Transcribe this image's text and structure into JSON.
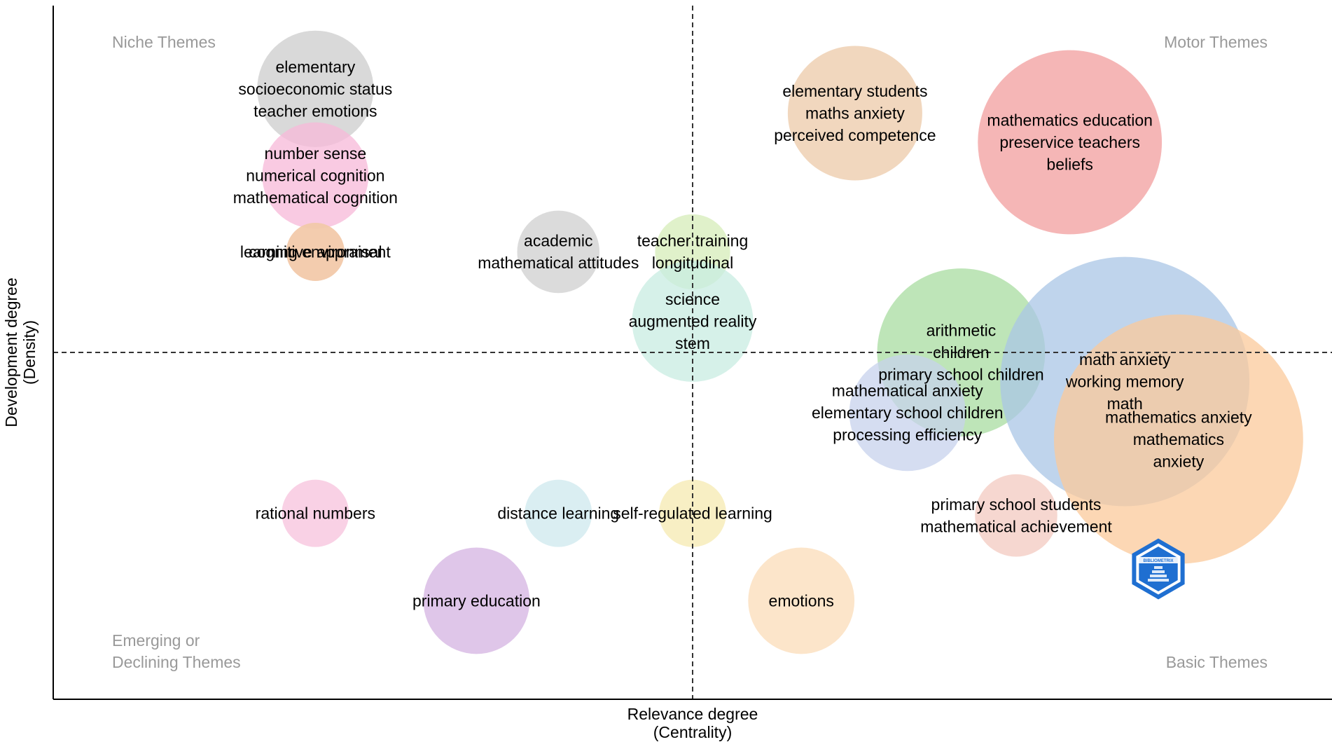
{
  "chart_data": {
    "type": "scatter",
    "title": "",
    "xlabel": [
      "Relevance degree",
      "(Centrality)"
    ],
    "ylabel": [
      "Development degree",
      "(Density)"
    ],
    "quadrant_labels": {
      "top_left": [
        "Niche Themes"
      ],
      "top_right": [
        "Motor Themes"
      ],
      "bottom_left": [
        "Emerging or",
        "Declining Themes"
      ],
      "bottom_right": [
        "Basic Themes"
      ]
    },
    "axis_ticks": "none",
    "grid": false,
    "reference_lines": {
      "x": 0.5,
      "y": 0.5,
      "style": "dashed"
    },
    "xlim": [
      0,
      1
    ],
    "ylim": [
      0,
      1
    ],
    "clusters": [
      {
        "x": 0.205,
        "y": 0.88,
        "size": 0.012,
        "color": "#cccccc",
        "labels": [
          "elementary",
          "socioeconomic status",
          "teacher emotions"
        ]
      },
      {
        "x": 0.205,
        "y": 0.755,
        "size": 0.01,
        "color": "#f7b8d8",
        "labels": [
          "number sense",
          "numerical cognition",
          "mathematical cognition"
        ]
      },
      {
        "x": 0.205,
        "y": 0.645,
        "size": 0.003,
        "color": "#f2c8a8",
        "labels": [
          "learning environment"
        ]
      },
      {
        "x": 0.205,
        "y": 0.645,
        "size": 0.003,
        "color": "#f2c8a8",
        "labels": [
          "cognitive appraisal"
        ]
      },
      {
        "x": 0.395,
        "y": 0.645,
        "size": 0.006,
        "color": "#cfcfcf",
        "labels": [
          "academic",
          "mathematical attitudes"
        ]
      },
      {
        "x": 0.5,
        "y": 0.645,
        "size": 0.005,
        "color": "#d6ecb8",
        "labels": [
          "teacher training",
          "longitudinal"
        ]
      },
      {
        "x": 0.5,
        "y": 0.545,
        "size": 0.013,
        "color": "#c8ece2",
        "labels": [
          "science",
          "augmented reality",
          "stem"
        ]
      },
      {
        "x": 0.627,
        "y": 0.845,
        "size": 0.016,
        "color": "#ecc9a8",
        "labels": [
          "elementary students",
          "maths anxiety",
          "perceived competence"
        ]
      },
      {
        "x": 0.795,
        "y": 0.803,
        "size": 0.03,
        "color": "#f29d9d",
        "labels": [
          "mathematics education",
          "preservice teachers",
          "beliefs"
        ]
      },
      {
        "x": 0.71,
        "y": 0.5,
        "size": 0.025,
        "color": "#a8dca0",
        "labels": [
          "arithmetic",
          "children",
          "primary school children"
        ]
      },
      {
        "x": 0.668,
        "y": 0.413,
        "size": 0.012,
        "color": "#c7d2ec",
        "labels": [
          "mathematical anxiety",
          "elementary school children",
          "processing efficiency"
        ]
      },
      {
        "x": 0.838,
        "y": 0.458,
        "size": 0.055,
        "color": "#a9c5e6",
        "labels": [
          "math anxiety",
          "working memory",
          "math"
        ]
      },
      {
        "x": 0.88,
        "y": 0.375,
        "size": 0.055,
        "color": "#fbc99b",
        "labels": [
          "mathematics anxiety",
          "mathematics",
          "anxiety"
        ]
      },
      {
        "x": 0.753,
        "y": 0.265,
        "size": 0.006,
        "color": "#f3c9c0",
        "labels": [
          "primary school students",
          "mathematical achievement"
        ]
      },
      {
        "x": 0.205,
        "y": 0.268,
        "size": 0.004,
        "color": "#f7c2dc",
        "labels": [
          "rational numbers"
        ]
      },
      {
        "x": 0.395,
        "y": 0.268,
        "size": 0.004,
        "color": "#cde8ee",
        "labels": [
          "distance learning"
        ]
      },
      {
        "x": 0.5,
        "y": 0.268,
        "size": 0.004,
        "color": "#f5eab0",
        "labels": [
          "self-regulated learning"
        ]
      },
      {
        "x": 0.331,
        "y": 0.142,
        "size": 0.01,
        "color": "#d4b3e2",
        "labels": [
          "primary education"
        ]
      },
      {
        "x": 0.585,
        "y": 0.142,
        "size": 0.01,
        "color": "#fbdcb8",
        "labels": [
          "emotions"
        ]
      }
    ],
    "logo": {
      "name": "bibliometrix-logo-icon",
      "text": "BIBLIOMETRIX",
      "color": "#1f6fd1"
    }
  }
}
